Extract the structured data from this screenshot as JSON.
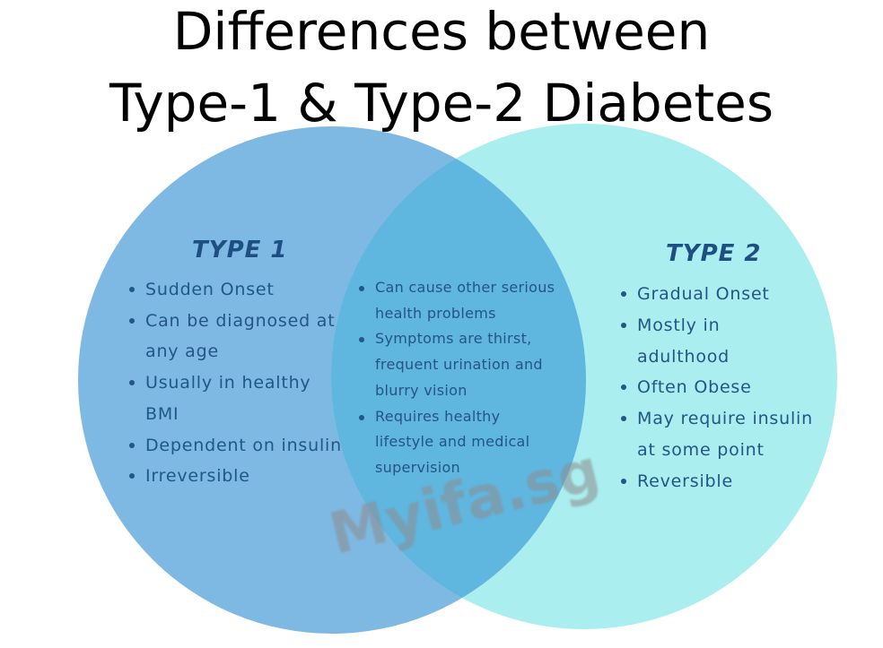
{
  "title": {
    "line1": "Differences between",
    "line2": "Type-1 & Type-2 Diabetes"
  },
  "colors": {
    "type1_circle": "#5aa5db",
    "type2_circle": "#8de8ea",
    "overlap": "#5fb6df",
    "heading_text": "#1d4f82",
    "item_text": "#235585"
  },
  "type1": {
    "heading": "TYPE 1",
    "items": [
      "Sudden Onset",
      "Can be diagnosed at",
      "any age",
      "Usually in healthy",
      "BMI",
      "Dependent on insulin",
      "Irreversible"
    ]
  },
  "shared": {
    "items": [
      "Can cause other serious",
      "health problems",
      "Symptoms are thirst,",
      "frequent urination and",
      "blurry vision",
      "Requires healthy",
      "lifestyle and medical",
      "supervision"
    ]
  },
  "type2": {
    "heading": "TYPE 2",
    "items": [
      "Gradual Onset",
      "Mostly in",
      "adulthood",
      "Often Obese",
      "May require insulin",
      "at some point",
      "Reversible"
    ]
  },
  "watermark": "Myifa.sg"
}
